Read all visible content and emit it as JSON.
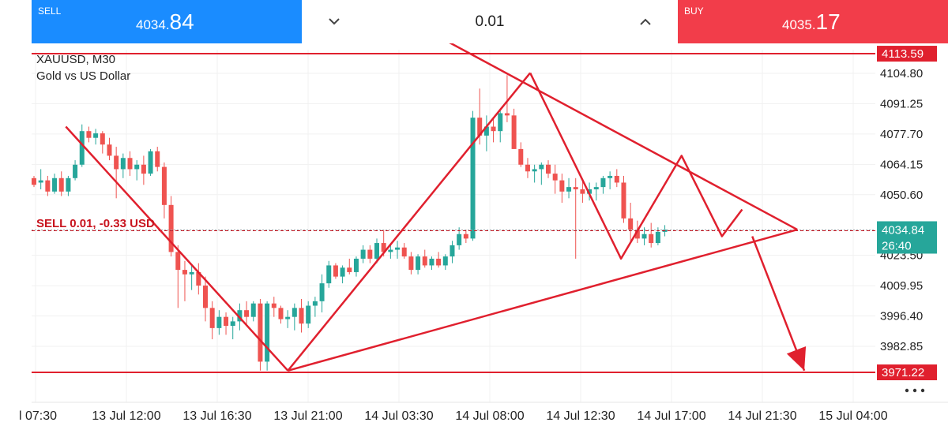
{
  "trade_panel": {
    "sell": {
      "label": "SELL",
      "price_main": "4034.",
      "price_big": "84"
    },
    "buy": {
      "label": "BUY",
      "price_main": "4035.",
      "price_big": "17"
    },
    "lot_size": "0.01",
    "decrease_icon": "chevron-down-icon",
    "increase_icon": "chevron-up-icon"
  },
  "chart": {
    "symbol_line": "XAUUSD, M30",
    "description": "Gold vs US Dollar",
    "position_label": "SELL 0.01,  -0.33 USD",
    "more_icon": "more-dots-icon",
    "colors": {
      "bull": "#26a69a",
      "bear": "#ef5350",
      "drawing": "#e0202e",
      "bid_tag": "#26a69a",
      "level_tag": "#e0202e"
    }
  },
  "chart_data": {
    "type": "candlestick",
    "symbol": "XAUUSD",
    "timeframe": "M30",
    "ylim": [
      3960,
      4122
    ],
    "y_ticks": [
      "4104.80",
      "4091.25",
      "4077.70",
      "4064.15",
      "4050.60",
      "4023.50",
      "4009.95",
      "3996.40",
      "3982.85"
    ],
    "x_ticks": [
      "l 07:30",
      "13 Jul 12:00",
      "13 Jul 16:30",
      "13 Jul 21:00",
      "14 Jul 03:30",
      "14 Jul 08:00",
      "14 Jul 12:30",
      "14 Jul 17:00",
      "14 Jul 21:30",
      "15 Jul 04:00"
    ],
    "bid_price": "4034.84",
    "countdown": "26:40",
    "levels": [
      {
        "name": "upper-level",
        "price": 4113.59,
        "label": "4113.59"
      },
      {
        "name": "lower-level",
        "price": 3971.22,
        "label": "3971.22"
      },
      {
        "name": "sell-position",
        "price": 4034.5
      }
    ],
    "candles": [
      [
        4058,
        4059,
        4054,
        4055
      ],
      [
        4056,
        4062,
        4053,
        4057
      ],
      [
        4057,
        4059,
        4050,
        4052
      ],
      [
        4052,
        4060,
        4051,
        4058
      ],
      [
        4058,
        4061,
        4050,
        4052
      ],
      [
        4052,
        4059,
        4050,
        4058
      ],
      [
        4058,
        4066,
        4057,
        4064
      ],
      [
        4064,
        4082,
        4063,
        4079
      ],
      [
        4079,
        4081,
        4074,
        4076
      ],
      [
        4076,
        4080,
        4073,
        4078
      ],
      [
        4078,
        4079,
        4069,
        4073
      ],
      [
        4073,
        4076,
        4066,
        4068
      ],
      [
        4068,
        4072,
        4049,
        4062
      ],
      [
        4062,
        4069,
        4058,
        4067
      ],
      [
        4067,
        4070,
        4059,
        4062
      ],
      [
        4062,
        4066,
        4057,
        4064
      ],
      [
        4064,
        4068,
        4055,
        4060
      ],
      [
        4060,
        4071,
        4059,
        4070
      ],
      [
        4070,
        4072,
        4061,
        4063
      ],
      [
        4063,
        4065,
        4040,
        4046
      ],
      [
        4046,
        4050,
        4023,
        4025
      ],
      [
        4025,
        4028,
        4000,
        4017
      ],
      [
        4017,
        4021,
        4003,
        4015
      ],
      [
        4015,
        4019,
        4008,
        4016
      ],
      [
        4016,
        4020,
        4006,
        4010
      ],
      [
        4010,
        4014,
        3994,
        4000
      ],
      [
        4000,
        4003,
        3986,
        3991
      ],
      [
        3991,
        3999,
        3988,
        3996
      ],
      [
        3996,
        3998,
        3988,
        3992
      ],
      [
        3992,
        3996,
        3986,
        3994
      ],
      [
        3994,
        4002,
        3990,
        3999
      ],
      [
        3999,
        4003,
        3992,
        3996
      ],
      [
        3996,
        4003,
        3994,
        4002
      ],
      [
        4002,
        4004,
        3972,
        3976
      ],
      [
        3976,
        4003,
        3972,
        4002
      ],
      [
        4002,
        4005,
        3996,
        4000
      ],
      [
        4000,
        4001,
        3993,
        3995
      ],
      [
        3995,
        3999,
        3991,
        3996
      ],
      [
        3996,
        4002,
        3990,
        4000
      ],
      [
        4000,
        4004,
        3989,
        3993
      ],
      [
        3993,
        4003,
        3991,
        4001
      ],
      [
        4001,
        4005,
        3996,
        4003
      ],
      [
        4003,
        4015,
        3998,
        4011
      ],
      [
        4011,
        4021,
        4009,
        4019
      ],
      [
        4019,
        4020,
        4013,
        4014
      ],
      [
        4014,
        4019,
        4011,
        4018
      ],
      [
        4018,
        4022,
        4015,
        4016
      ],
      [
        4016,
        4023,
        4014,
        4022
      ],
      [
        4022,
        4028,
        4020,
        4026
      ],
      [
        4026,
        4028,
        4020,
        4022
      ],
      [
        4022,
        4031,
        4020,
        4029
      ],
      [
        4029,
        4035,
        4023,
        4025
      ],
      [
        4025,
        4028,
        4022,
        4026
      ],
      [
        4026,
        4030,
        4022,
        4027
      ],
      [
        4027,
        4029,
        4022,
        4023
      ],
      [
        4023,
        4025,
        4015,
        4017
      ],
      [
        4017,
        4024,
        4015,
        4023
      ],
      [
        4023,
        4026,
        4018,
        4019
      ],
      [
        4019,
        4023,
        4017,
        4022
      ],
      [
        4022,
        4025,
        4018,
        4019
      ],
      [
        4019,
        4024,
        4017,
        4023
      ],
      [
        4023,
        4030,
        4020,
        4028
      ],
      [
        4028,
        4036,
        4026,
        4033
      ],
      [
        4033,
        4035,
        4029,
        4031
      ],
      [
        4031,
        4088,
        4030,
        4085
      ],
      [
        4085,
        4098,
        4073,
        4077
      ],
      [
        4077,
        4086,
        4070,
        4081
      ],
      [
        4081,
        4085,
        4074,
        4079
      ],
      [
        4079,
        4089,
        4074,
        4087
      ],
      [
        4087,
        4104,
        4083,
        4086
      ],
      [
        4086,
        4089,
        4071,
        4071
      ],
      [
        4071,
        4074,
        4063,
        4064
      ],
      [
        4064,
        4067,
        4058,
        4061
      ],
      [
        4061,
        4064,
        4056,
        4062
      ],
      [
        4062,
        4065,
        4055,
        4064
      ],
      [
        4064,
        4066,
        4058,
        4060
      ],
      [
        4060,
        4064,
        4051,
        4057
      ],
      [
        4057,
        4060,
        4047,
        4052
      ],
      [
        4052,
        4058,
        4049,
        4054
      ],
      [
        4054,
        4058,
        4022,
        4053
      ],
      [
        4053,
        4057,
        4047,
        4051
      ],
      [
        4051,
        4056,
        4048,
        4053
      ],
      [
        4053,
        4056,
        4048,
        4054
      ],
      [
        4054,
        4059,
        4051,
        4058
      ],
      [
        4058,
        4061,
        4053,
        4059
      ],
      [
        4059,
        4062,
        4054,
        4056
      ],
      [
        4056,
        4059,
        4038,
        4040
      ],
      [
        4040,
        4047,
        4030,
        4035
      ],
      [
        4035,
        4039,
        4029,
        4031
      ],
      [
        4031,
        4036,
        4028,
        4033
      ],
      [
        4033,
        4038,
        4027,
        4029
      ],
      [
        4029,
        4036,
        4028,
        4034
      ],
      [
        4034,
        4037,
        4032,
        4035
      ]
    ],
    "drawings": [
      {
        "name": "descending-wedge-line",
        "from": {
          "time": "13 Jul 09:00",
          "price": 4081
        },
        "to": {
          "time": "13 Jul 20:00",
          "price": 3972
        }
      },
      {
        "name": "rising-leg-line",
        "from": {
          "time": "13 Jul 20:00",
          "price": 3972
        },
        "to": {
          "time": "14 Jul 10:00",
          "price": 4105
        }
      },
      {
        "name": "support-trendline",
        "from": {
          "time": "13 Jul 20:00",
          "price": 3972
        },
        "to": {
          "time": "15 Jul 00:00",
          "price": 4035
        }
      },
      {
        "name": "resistance-trendline",
        "from": {
          "time": "14 Jul 05:30",
          "price": 4121
        },
        "to": {
          "time": "15 Jul 00:00",
          "price": 4035
        }
      },
      {
        "name": "zigzag-line",
        "points": [
          {
            "time": "14 Jul 10:00",
            "price": 4105
          },
          {
            "time": "14 Jul 14:30",
            "price": 4022
          },
          {
            "time": "14 Jul 17:30",
            "price": 4068
          },
          {
            "time": "14 Jul 19:30",
            "price": 4032
          },
          {
            "time": "14 Jul 20:30",
            "price": 4044
          }
        ]
      },
      {
        "name": "projection-arrow",
        "from": {
          "time": "14 Jul 21:00",
          "price": 4032
        },
        "to": {
          "time": "15 Jul 00:30",
          "price": 3972
        }
      }
    ]
  }
}
